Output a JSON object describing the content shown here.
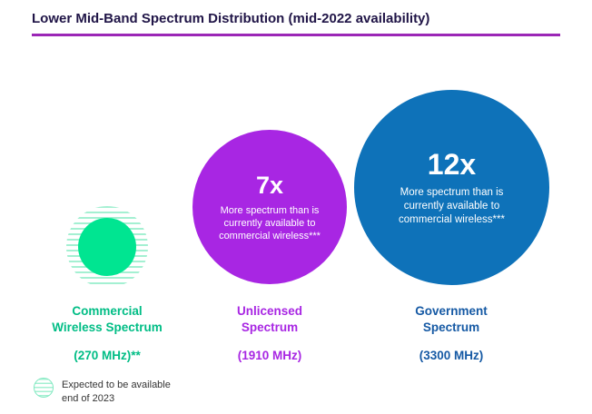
{
  "title": "Lower Mid-Band Spectrum Distribution (mid-2022 availability)",
  "title_color": "#201547",
  "accent_rule_color": "#9B26B6",
  "bubbles": [
    {
      "id": "commercial",
      "multiplier": "",
      "desc": "",
      "label_line1": "Commercial",
      "label_line2": "Wireless Spectrum",
      "sublabel": "(270 MHz)**",
      "color": "#00E591",
      "label_color": "#00BD85"
    },
    {
      "id": "unlicensed",
      "multiplier": "7x",
      "desc": "More spectrum than is currently available to commercial wireless***",
      "label_line1": "Unlicensed",
      "label_line2": "Spectrum",
      "sublabel": "(1910 MHz)",
      "color": "#A826E3",
      "label_color": "#A826E3"
    },
    {
      "id": "government",
      "multiplier": "12x",
      "desc": "More spectrum than is currently available to commercial wireless***",
      "label_line1": "Government",
      "label_line2": "Spectrum",
      "sublabel": "(3300 MHz)",
      "color": "#0E72B9",
      "label_color": "#1559A4"
    }
  ],
  "legend": {
    "line1": "Expected to be available",
    "line2": "end of 2023",
    "icon": "hatched-circle"
  },
  "chart_data": {
    "type": "bubble",
    "title": "Lower Mid-Band Spectrum Distribution (mid-2022 availability)",
    "categories": [
      "Commercial Wireless Spectrum",
      "Unlicensed Spectrum",
      "Government Spectrum"
    ],
    "values_mhz": [
      270,
      1910,
      3300
    ],
    "relative_size_vs_commercial": [
      1,
      7,
      12
    ],
    "category_sublabels": [
      "(270 MHz)**",
      "(1910 MHz)",
      "(3300 MHz)"
    ],
    "bubble_annotations": [
      "",
      "7x More spectrum than is currently available to commercial wireless***",
      "12x More spectrum than is currently available to commercial wireless***"
    ],
    "legend_entries": [
      "Expected to be available end of 2023"
    ],
    "colors": [
      "#00E591",
      "#A826E3",
      "#0E72B9"
    ],
    "legend_position": "bottom-left"
  }
}
